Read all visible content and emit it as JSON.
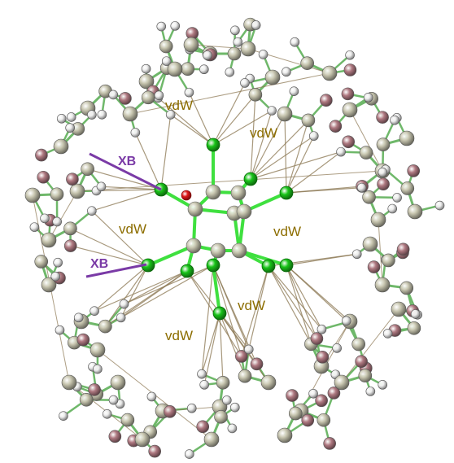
{
  "labels": {
    "vdw_1": "vdW",
    "vdw_2": "vdW",
    "vdw_3": "vdW",
    "vdw_4": "vdW",
    "vdw_5": "vdW",
    "vdw_6": "vdW",
    "xb_1": "XB",
    "xb_2": "XB"
  },
  "colors": {
    "vdw_text": "#8c6d00",
    "xb": "#7a3aa6",
    "green_atom": "#19c419",
    "hydrogen": "#eeeeee",
    "carbon": "#c8c6b0",
    "halogen": "#b07a82",
    "oxygen": "#e01818",
    "bond": "#6fb86a",
    "contact": "#8a7550"
  }
}
